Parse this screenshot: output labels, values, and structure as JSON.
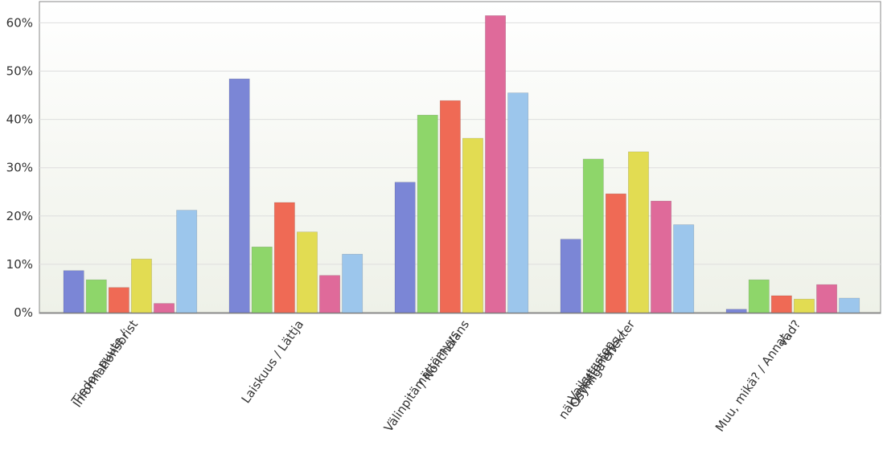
{
  "chart_data": {
    "type": "bar",
    "title": "",
    "xlabel": "",
    "ylabel": "",
    "ylim": [
      0,
      65
    ],
    "y_ticks": [
      {
        "value": 0,
        "label": "0%"
      },
      {
        "value": 10,
        "label": "10%"
      },
      {
        "value": 20,
        "label": "20%"
      },
      {
        "value": 30,
        "label": "30%"
      },
      {
        "value": 40,
        "label": "40%"
      },
      {
        "value": 50,
        "label": "50%"
      },
      {
        "value": 60,
        "label": "60%"
      }
    ],
    "grid": true,
    "legend": "none",
    "categories": [
      [
        "Tiedon puute /",
        "Informationsbrist"
      ],
      [
        "Laiskuus / Lättja"
      ],
      [
        "Välinpitämättömyys",
        "/ Nonchalans"
      ],
      [
        "Vaikutusten",
        "näkymättömyys /",
        "Osynliga effekter"
      ],
      [
        "Muu, mikä? / Annat,",
        "vad?"
      ]
    ],
    "series": [
      {
        "color": "#7b86d6",
        "values": [
          8.7,
          48.4,
          27.0,
          15.2,
          0.7
        ]
      },
      {
        "color": "#8ed66a",
        "values": [
          6.8,
          13.6,
          40.9,
          31.8,
          6.8
        ]
      },
      {
        "color": "#ef6a55",
        "values": [
          5.2,
          22.8,
          43.9,
          24.6,
          3.5
        ]
      },
      {
        "color": "#e2dc52",
        "values": [
          11.1,
          16.7,
          36.1,
          33.3,
          2.8
        ]
      },
      {
        "color": "#df6a9a",
        "values": [
          1.9,
          7.7,
          61.5,
          23.1,
          5.8
        ]
      },
      {
        "color": "#9cc6ec",
        "values": [
          21.2,
          12.1,
          45.5,
          18.2,
          3.0
        ]
      }
    ]
  }
}
